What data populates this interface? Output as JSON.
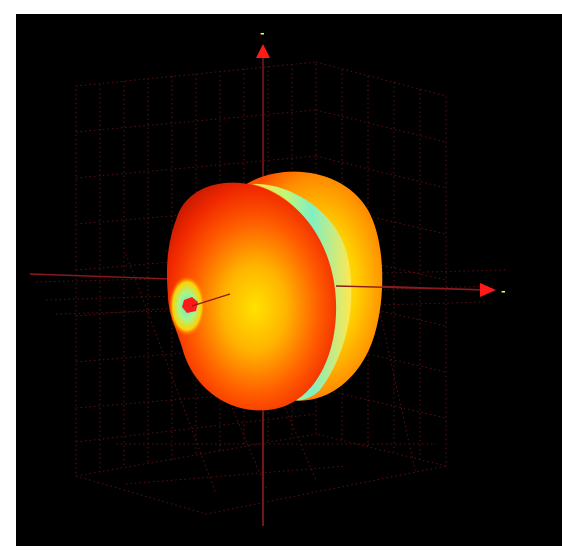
{
  "viewer": {
    "background": "#000000",
    "axis_color": "#8b1a1a",
    "arrow_color": "#ff1a1a",
    "label_color": "#ffff33",
    "axes": {
      "vertical_label": "-",
      "horizontal_label": "-"
    },
    "pattern": {
      "type": "3D radiation pattern",
      "colormap": [
        "#c81800",
        "#ff4a00",
        "#ff9a00",
        "#ffe400",
        "#c6ff6a",
        "#7ff0c0"
      ]
    }
  }
}
